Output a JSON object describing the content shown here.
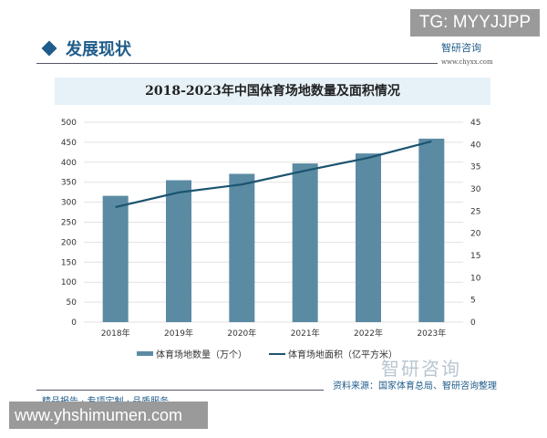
{
  "overlay_top": "TG: MYYJJPP",
  "section": {
    "title": "发展现状",
    "brand": "智研咨询",
    "url": "www.chyxx.com"
  },
  "chart_data": {
    "type": "bar+line",
    "title": "2018-2023年中国体育场地数量及面积情况",
    "categories": [
      "2018年",
      "2019年",
      "2020年",
      "2021年",
      "2022年",
      "2023年"
    ],
    "series": [
      {
        "name": "体育场地数量（万个）",
        "type": "bar",
        "axis": "left",
        "color": "#5b8ba3",
        "values": [
          316,
          355,
          371,
          397,
          422,
          459
        ]
      },
      {
        "name": "体育场地面积（亿平方米）",
        "type": "line",
        "axis": "right",
        "color": "#1b5470",
        "values": [
          25.9,
          29.2,
          31.0,
          34.1,
          37.0,
          40.7
        ]
      }
    ],
    "y_left": {
      "range": [
        0,
        500
      ],
      "ticks": [
        0,
        50,
        100,
        150,
        200,
        250,
        300,
        350,
        400,
        450,
        500
      ]
    },
    "y_right": {
      "range": [
        0,
        45
      ],
      "ticks": [
        0,
        5,
        10,
        15,
        20,
        25,
        30,
        35,
        40,
        45
      ]
    },
    "grid": true,
    "legend": "bottom"
  },
  "footer": {
    "source": "资料来源：国家体育总局、智研咨询整理",
    "slogan": "精品报告 · 专项定制 · 品质服务",
    "watermark": "智研咨询"
  },
  "overlay_bottom": "www.yhshimumen.com"
}
